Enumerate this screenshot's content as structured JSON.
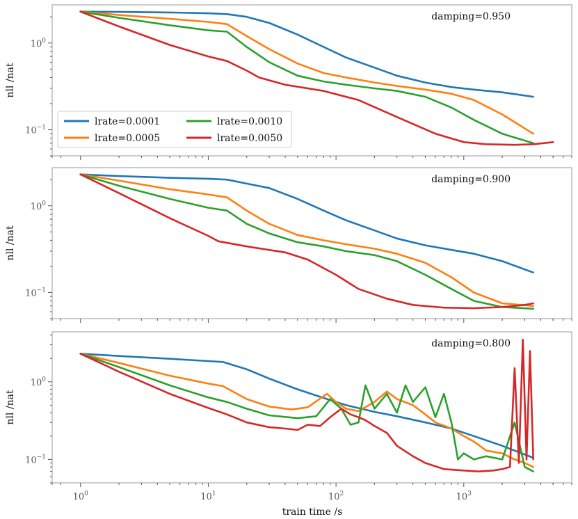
{
  "chart_data": {
    "type": "line",
    "xscale": "log",
    "yscale": "log",
    "xlabel": "train time /s",
    "x_ticks": [
      "10^0",
      "10^1",
      "10^2",
      "10^3"
    ],
    "x_tick_values": [
      1,
      10,
      100,
      1000
    ],
    "xlim": [
      0.6,
      7000
    ],
    "legend": {
      "placement": "lower-left of top panel",
      "entries": [
        "lrate=0.0001",
        "lrate=0.0005",
        "lrate=0.0010",
        "lrate=0.0050"
      ]
    },
    "colors": {
      "lrate=0.0001": "#1f77b4",
      "lrate=0.0005": "#ff7f0e",
      "lrate=0.0010": "#2ca02c",
      "lrate=0.0050": "#d62728"
    },
    "panels": [
      {
        "annotation": "damping=0.950",
        "ylabel": "nll /nat",
        "ylim": [
          0.05,
          2.75
        ],
        "y_ticks": [
          "10^0",
          "10^-1"
        ],
        "y_tick_values": [
          1,
          0.1
        ],
        "series": [
          {
            "name": "lrate=0.0001",
            "x": [
              1,
              2,
              5,
              10,
              14,
              20,
              30,
              50,
              80,
              120,
              200,
              300,
              500,
              800,
              1200,
              2000,
              3500
            ],
            "y": [
              2.3,
              2.28,
              2.25,
              2.2,
              2.15,
              2.0,
              1.7,
              1.25,
              0.9,
              0.68,
              0.52,
              0.42,
              0.35,
              0.31,
              0.29,
              0.27,
              0.24
            ]
          },
          {
            "name": "lrate=0.0005",
            "x": [
              1,
              2,
              5,
              10,
              14,
              20,
              30,
              50,
              80,
              120,
              200,
              300,
              500,
              800,
              1200,
              2000,
              3500
            ],
            "y": [
              2.3,
              2.1,
              1.9,
              1.75,
              1.65,
              1.2,
              0.85,
              0.58,
              0.45,
              0.4,
              0.35,
              0.32,
              0.29,
              0.26,
              0.22,
              0.15,
              0.09
            ]
          },
          {
            "name": "lrate=0.0010",
            "x": [
              1,
              2,
              5,
              10,
              14,
              20,
              30,
              50,
              80,
              120,
              200,
              300,
              500,
              800,
              1200,
              2000,
              3500
            ],
            "y": [
              2.3,
              1.95,
              1.6,
              1.4,
              1.35,
              0.9,
              0.6,
              0.42,
              0.36,
              0.33,
              0.3,
              0.28,
              0.24,
              0.18,
              0.13,
              0.09,
              0.07
            ]
          },
          {
            "name": "lrate=0.0050",
            "x": [
              1,
              2,
              5,
              10,
              14,
              20,
              25,
              40,
              80,
              150,
              300,
              600,
              1000,
              1500,
              2500,
              3500,
              5000
            ],
            "y": [
              2.3,
              1.55,
              0.95,
              0.7,
              0.62,
              0.48,
              0.4,
              0.33,
              0.28,
              0.22,
              0.14,
              0.09,
              0.072,
              0.068,
              0.067,
              0.068,
              0.072
            ]
          }
        ]
      },
      {
        "annotation": "damping=0.900",
        "ylabel": "nll /nat",
        "ylim": [
          0.05,
          2.75
        ],
        "y_ticks": [
          "10^0",
          "10^-1"
        ],
        "y_tick_values": [
          1,
          0.1
        ],
        "series": [
          {
            "name": "lrate=0.0001",
            "x": [
              1,
              2,
              5,
              10,
              14,
              20,
              30,
              50,
              80,
              120,
              200,
              300,
              500,
              800,
              1200,
              2000,
              3500
            ],
            "y": [
              2.3,
              2.2,
              2.1,
              2.05,
              2.0,
              1.8,
              1.6,
              1.2,
              0.88,
              0.68,
              0.52,
              0.42,
              0.35,
              0.31,
              0.28,
              0.23,
              0.17
            ]
          },
          {
            "name": "lrate=0.0005",
            "x": [
              1,
              2,
              5,
              10,
              14,
              20,
              30,
              50,
              80,
              120,
              200,
              300,
              500,
              800,
              1200,
              2000,
              3500
            ],
            "y": [
              2.3,
              1.95,
              1.55,
              1.35,
              1.25,
              0.88,
              0.62,
              0.46,
              0.4,
              0.36,
              0.32,
              0.28,
              0.22,
              0.15,
              0.1,
              0.075,
              0.07
            ]
          },
          {
            "name": "lrate=0.0010",
            "x": [
              1,
              2,
              5,
              10,
              14,
              20,
              30,
              50,
              80,
              120,
              200,
              300,
              500,
              800,
              1200,
              2000,
              3500
            ],
            "y": [
              2.3,
              1.7,
              1.2,
              0.95,
              0.88,
              0.62,
              0.48,
              0.38,
              0.34,
              0.3,
              0.27,
              0.23,
              0.16,
              0.11,
              0.08,
              0.068,
              0.065
            ]
          },
          {
            "name": "lrate=0.0050",
            "x": [
              1,
              2,
              5,
              10,
              12,
              20,
              40,
              60,
              100,
              150,
              250,
              400,
              700,
              1200,
              2000,
              3000,
              3500
            ],
            "y": [
              2.3,
              1.4,
              0.72,
              0.45,
              0.39,
              0.34,
              0.29,
              0.24,
              0.16,
              0.11,
              0.085,
              0.072,
              0.067,
              0.066,
              0.068,
              0.072,
              0.075
            ]
          }
        ]
      },
      {
        "annotation": "damping=0.800",
        "ylabel": "nll /nat",
        "ylim": [
          0.05,
          4.4
        ],
        "y_ticks": [
          "10^0",
          "10^-1"
        ],
        "y_tick_values": [
          1,
          0.1
        ],
        "series": [
          {
            "name": "lrate=0.0001",
            "x": [
              1,
              2,
              5,
              10,
              13,
              20,
              30,
              50,
              80,
              120,
              200,
              300,
              500,
              800,
              1200,
              2000,
              3500
            ],
            "y": [
              2.3,
              2.15,
              1.98,
              1.85,
              1.8,
              1.45,
              1.1,
              0.8,
              0.62,
              0.5,
              0.41,
              0.36,
              0.3,
              0.25,
              0.2,
              0.15,
              0.105
            ]
          },
          {
            "name": "lrate=0.0005",
            "x": [
              1,
              2,
              5,
              10,
              13,
              20,
              30,
              45,
              60,
              85,
              100,
              120,
              150,
              200,
              250,
              300,
              400,
              500,
              600,
              800,
              1000,
              1200,
              1500,
              2000,
              2500,
              3000,
              3500
            ],
            "y": [
              2.3,
              1.75,
              1.2,
              0.95,
              0.88,
              0.6,
              0.48,
              0.44,
              0.47,
              0.7,
              0.55,
              0.45,
              0.42,
              0.55,
              0.75,
              0.6,
              0.5,
              0.38,
              0.3,
              0.25,
              0.2,
              0.17,
              0.13,
              0.12,
              0.1,
              0.09,
              0.08
            ]
          },
          {
            "name": "lrate=0.0010",
            "x": [
              1,
              2,
              5,
              10,
              14,
              20,
              30,
              50,
              70,
              90,
              110,
              130,
              150,
              170,
              200,
              250,
              300,
              350,
              400,
              500,
              600,
              700,
              800,
              900,
              1000,
              1200,
              1500,
              2000,
              2500,
              3000,
              3500
            ],
            "y": [
              2.3,
              1.55,
              0.9,
              0.63,
              0.55,
              0.45,
              0.37,
              0.34,
              0.36,
              0.6,
              0.45,
              0.28,
              0.3,
              0.9,
              0.45,
              0.7,
              0.4,
              0.9,
              0.55,
              0.85,
              0.35,
              0.7,
              0.3,
              0.1,
              0.12,
              0.1,
              0.11,
              0.1,
              0.3,
              0.08,
              0.07
            ]
          },
          {
            "name": "lrate=0.0050",
            "x": [
              1,
              2,
              5,
              10,
              14,
              20,
              30,
              40,
              50,
              60,
              75,
              90,
              110,
              130,
              150,
              170,
              200,
              250,
              300,
              400,
              500,
              700,
              1000,
              1300,
              1700,
              2000,
              2300,
              2500,
              2700,
              2900,
              3100,
              3300,
              3500
            ],
            "y": [
              2.3,
              1.35,
              0.7,
              0.46,
              0.38,
              0.3,
              0.26,
              0.25,
              0.24,
              0.28,
              0.27,
              0.35,
              0.45,
              0.38,
              0.35,
              0.32,
              0.27,
              0.22,
              0.15,
              0.11,
              0.09,
              0.075,
              0.072,
              0.07,
              0.072,
              0.075,
              0.08,
              1.5,
              0.09,
              3.5,
              0.1,
              2.5,
              0.1
            ]
          }
        ]
      }
    ]
  }
}
